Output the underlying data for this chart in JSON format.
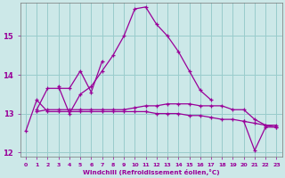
{
  "xlabel": "Windchill (Refroidissement éolien,°C)",
  "bg_color": "#cce8e8",
  "grid_color": "#99cccc",
  "line_color": "#990099",
  "x": [
    0,
    1,
    2,
    3,
    4,
    5,
    6,
    7,
    8,
    9,
    10,
    11,
    12,
    13,
    14,
    15,
    16,
    17,
    18,
    19,
    20,
    21,
    22,
    23
  ],
  "line_upper": [
    null,
    null,
    null,
    13.7,
    13.0,
    13.5,
    13.7,
    14.1,
    14.5,
    15.0,
    15.7,
    15.75,
    15.3,
    15.0,
    14.6,
    14.1,
    13.6,
    13.35,
    null,
    null,
    null,
    null,
    null,
    null
  ],
  "line_mid_upper": [
    null,
    13.1,
    13.65,
    13.65,
    13.65,
    14.1,
    13.55,
    14.35,
    null,
    null,
    null,
    null,
    null,
    null,
    null,
    null,
    null,
    null,
    null,
    null,
    null,
    null,
    null,
    null
  ],
  "line_mid": [
    null,
    13.05,
    13.1,
    13.1,
    13.1,
    13.1,
    13.1,
    13.1,
    13.1,
    13.1,
    13.15,
    13.2,
    13.2,
    13.25,
    13.25,
    13.25,
    13.2,
    13.2,
    13.2,
    13.1,
    13.1,
    12.85,
    12.7,
    12.7
  ],
  "line_bottom": [
    12.55,
    13.35,
    13.05,
    13.05,
    13.05,
    13.05,
    13.05,
    13.05,
    13.05,
    13.05,
    13.05,
    13.05,
    13.0,
    13.0,
    13.0,
    12.95,
    12.95,
    12.9,
    12.85,
    12.85,
    12.8,
    12.75,
    12.7,
    12.65
  ],
  "line_dip": [
    null,
    null,
    null,
    null,
    null,
    null,
    null,
    null,
    null,
    null,
    null,
    null,
    null,
    null,
    null,
    null,
    null,
    null,
    null,
    null,
    12.8,
    12.05,
    12.65,
    12.65
  ],
  "ylim": [
    11.9,
    15.85
  ],
  "yticks": [
    12,
    13,
    14,
    15
  ],
  "xlim": [
    -0.5,
    23.5
  ]
}
